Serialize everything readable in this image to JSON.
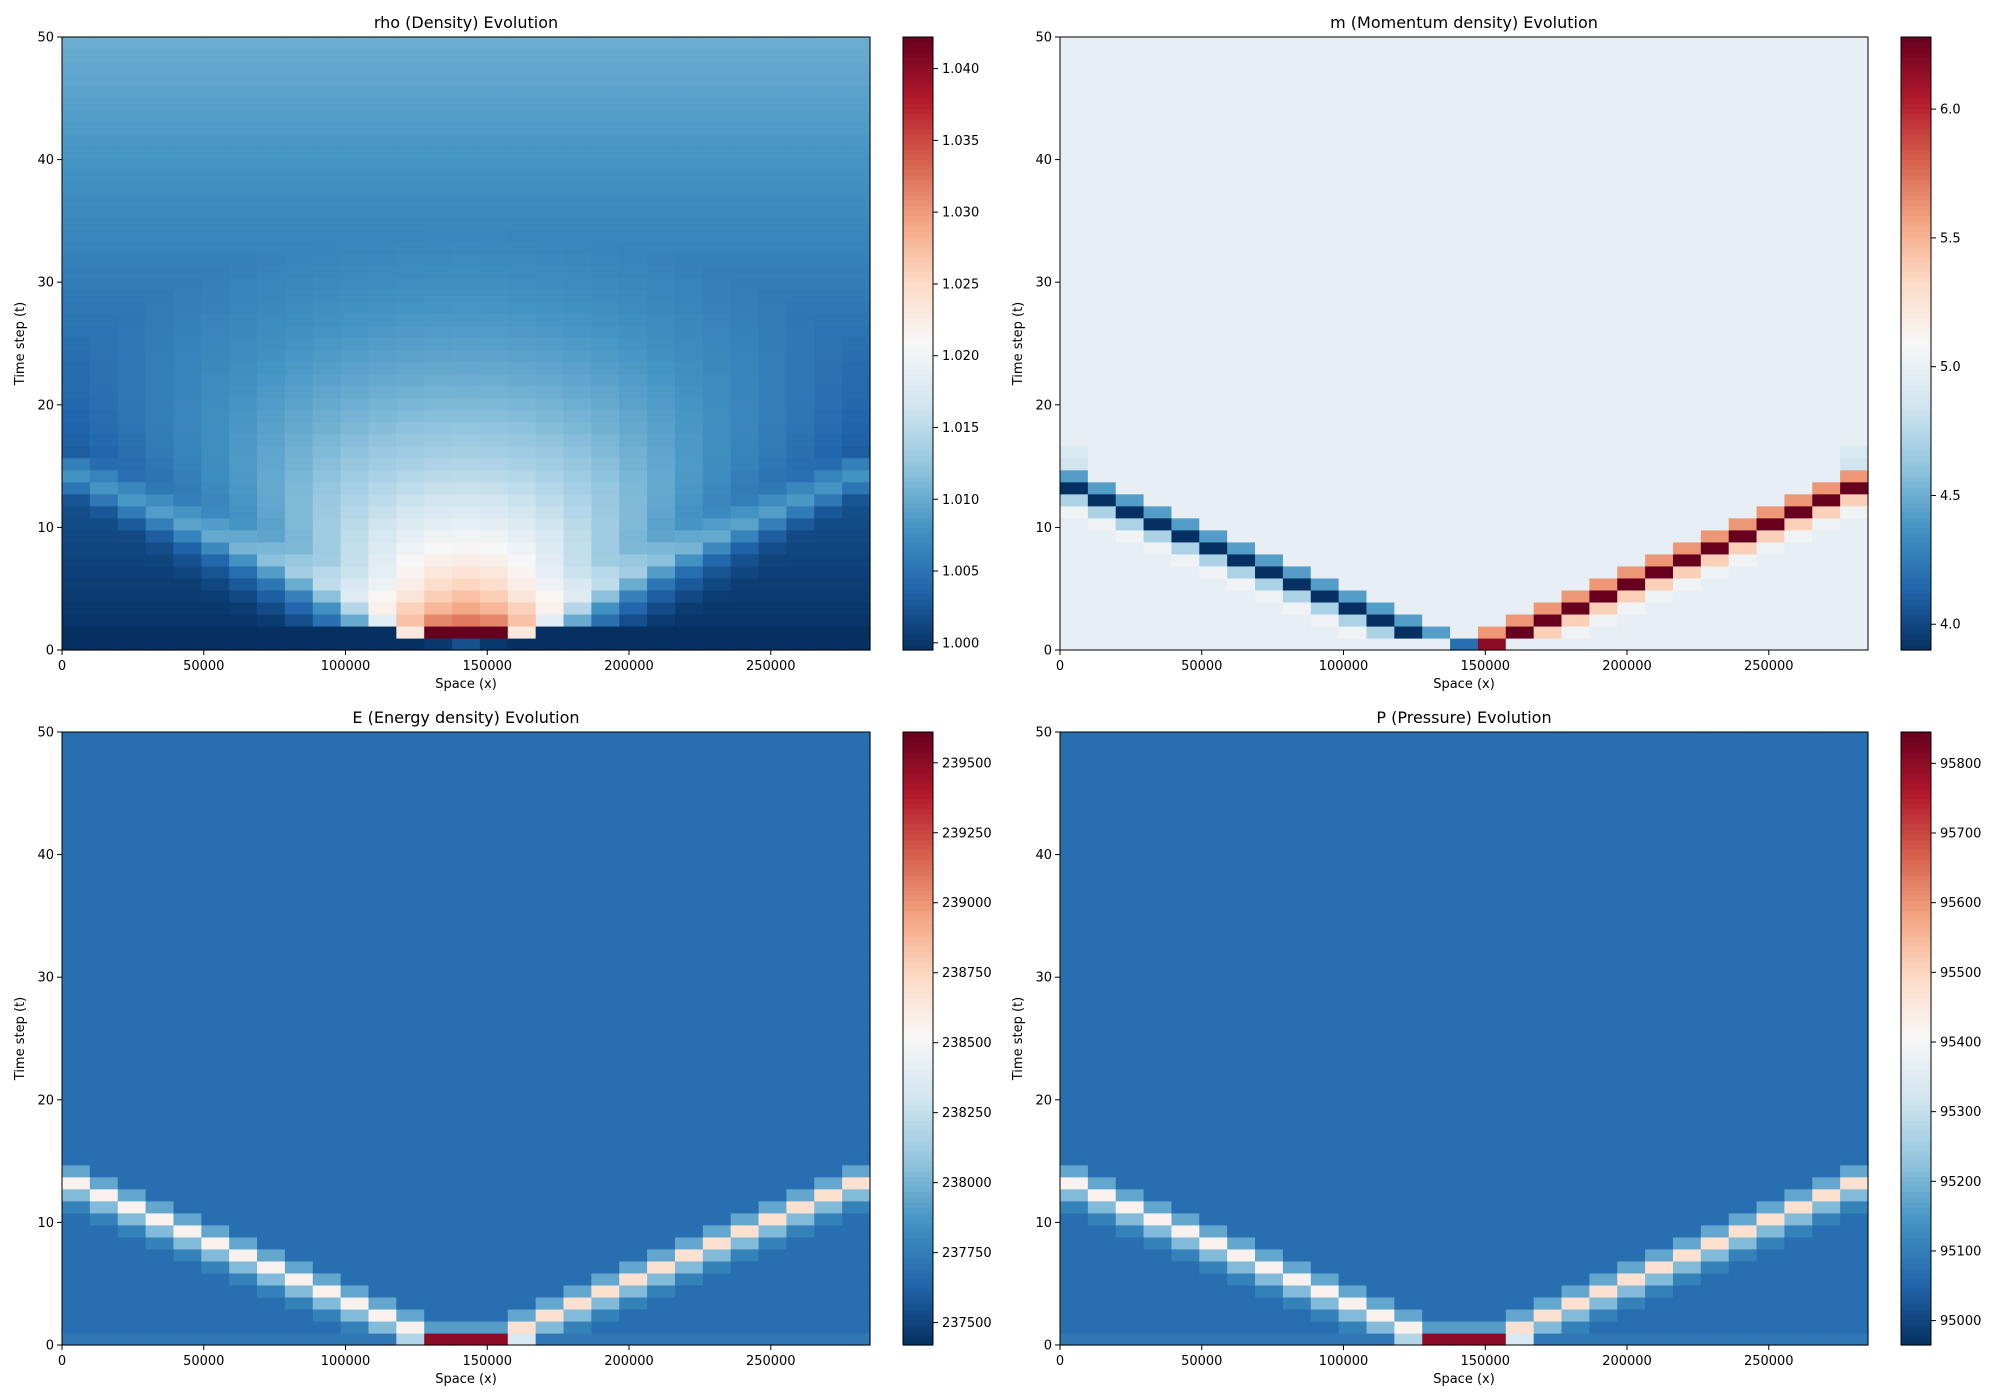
{
  "figure": {
    "cmap": [
      "#053061",
      "#2166ac",
      "#4393c3",
      "#92c5de",
      "#d1e5f0",
      "#f7f7f7",
      "#fddbc7",
      "#f4a582",
      "#d6604d",
      "#b2182b",
      "#67001f"
    ],
    "nx": 29,
    "nt": 51,
    "x_max": 285000,
    "t_max": 50
  },
  "chart_data": [
    {
      "type": "heatmap",
      "field": "rho",
      "title": "rho (Density) Evolution",
      "xlabel": "Space (x)",
      "ylabel": "Time step (t)",
      "xlim": [
        0,
        285000
      ],
      "ylim": [
        0,
        50
      ],
      "xticks": [
        "0",
        "50000",
        "100000",
        "150000",
        "200000",
        "250000"
      ],
      "yticks": [
        "0",
        "10",
        "20",
        "30",
        "40",
        "50"
      ],
      "vmin": 0.9995,
      "vmax": 1.0422,
      "colorbar_ticks": [
        "1.000",
        "1.005",
        "1.010",
        "1.015",
        "1.020",
        "1.025",
        "1.030",
        "1.035",
        "1.040"
      ]
    },
    {
      "type": "heatmap",
      "field": "m",
      "title": "m (Momentum density) Evolution",
      "xlabel": "Space (x)",
      "ylabel": "Time step (t)",
      "xlim": [
        0,
        285000
      ],
      "ylim": [
        0,
        50
      ],
      "xticks": [
        "0",
        "50000",
        "100000",
        "150000",
        "200000",
        "250000"
      ],
      "yticks": [
        "0",
        "10",
        "20",
        "30",
        "40",
        "50"
      ],
      "vmin": 3.9,
      "vmax": 6.28,
      "colorbar_ticks": [
        "4.0",
        "4.5",
        "5.0",
        "5.5",
        "6.0"
      ]
    },
    {
      "type": "heatmap",
      "field": "E",
      "title": "E (Energy density) Evolution",
      "xlabel": "Space (x)",
      "ylabel": "Time step (t)",
      "xlim": [
        0,
        285000
      ],
      "ylim": [
        0,
        50
      ],
      "xticks": [
        "0",
        "50000",
        "100000",
        "150000",
        "200000",
        "250000"
      ],
      "yticks": [
        "0",
        "10",
        "20",
        "30",
        "40",
        "50"
      ],
      "vmin": 237420,
      "vmax": 239610,
      "colorbar_ticks": [
        "237500",
        "237750",
        "238000",
        "238250",
        "238500",
        "238750",
        "239000",
        "239250",
        "239500"
      ]
    },
    {
      "type": "heatmap",
      "field": "P",
      "title": "P (Pressure) Evolution",
      "xlabel": "Space (x)",
      "ylabel": "Time step (t)",
      "xlim": [
        0,
        285000
      ],
      "ylim": [
        0,
        50
      ],
      "xticks": [
        "0",
        "50000",
        "100000",
        "150000",
        "200000",
        "250000"
      ],
      "yticks": [
        "0",
        "10",
        "20",
        "30",
        "40",
        "50"
      ],
      "vmin": 94965,
      "vmax": 95845,
      "colorbar_ticks": [
        "95000",
        "95100",
        "95200",
        "95300",
        "95400",
        "95500",
        "95600",
        "95700",
        "95800"
      ]
    }
  ]
}
